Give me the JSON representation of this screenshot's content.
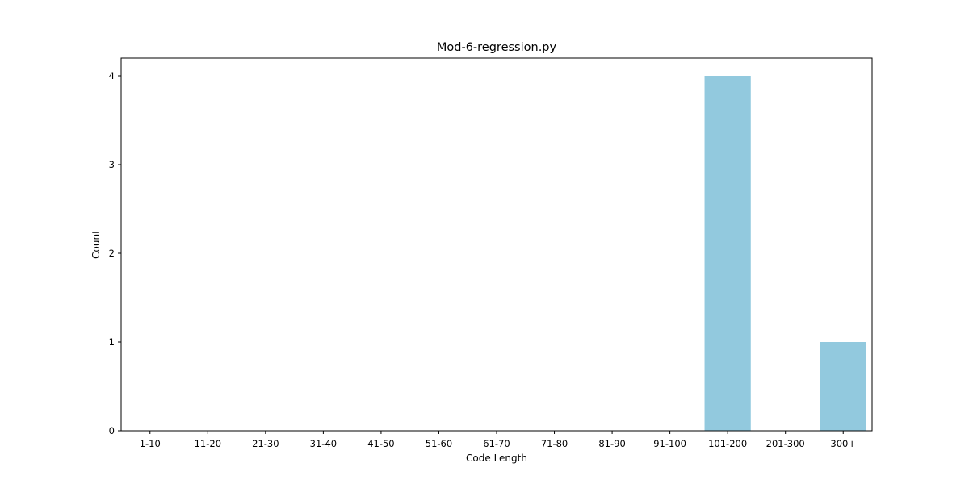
{
  "chart_data": {
    "type": "bar",
    "title": "Mod-6-regression.py",
    "xlabel": "Code Length",
    "ylabel": "Count",
    "categories": [
      "1-10",
      "11-20",
      "21-30",
      "31-40",
      "41-50",
      "51-60",
      "61-70",
      "71-80",
      "81-90",
      "91-100",
      "101-200",
      "201-300",
      "300+"
    ],
    "values": [
      0,
      0,
      0,
      0,
      0,
      0,
      0,
      0,
      0,
      0,
      4,
      0,
      1
    ],
    "yticks": [
      0,
      1,
      2,
      3,
      4
    ],
    "ylim": [
      0,
      4.2
    ],
    "bar_color": "#92c9de",
    "grid": false,
    "legend": "none"
  }
}
